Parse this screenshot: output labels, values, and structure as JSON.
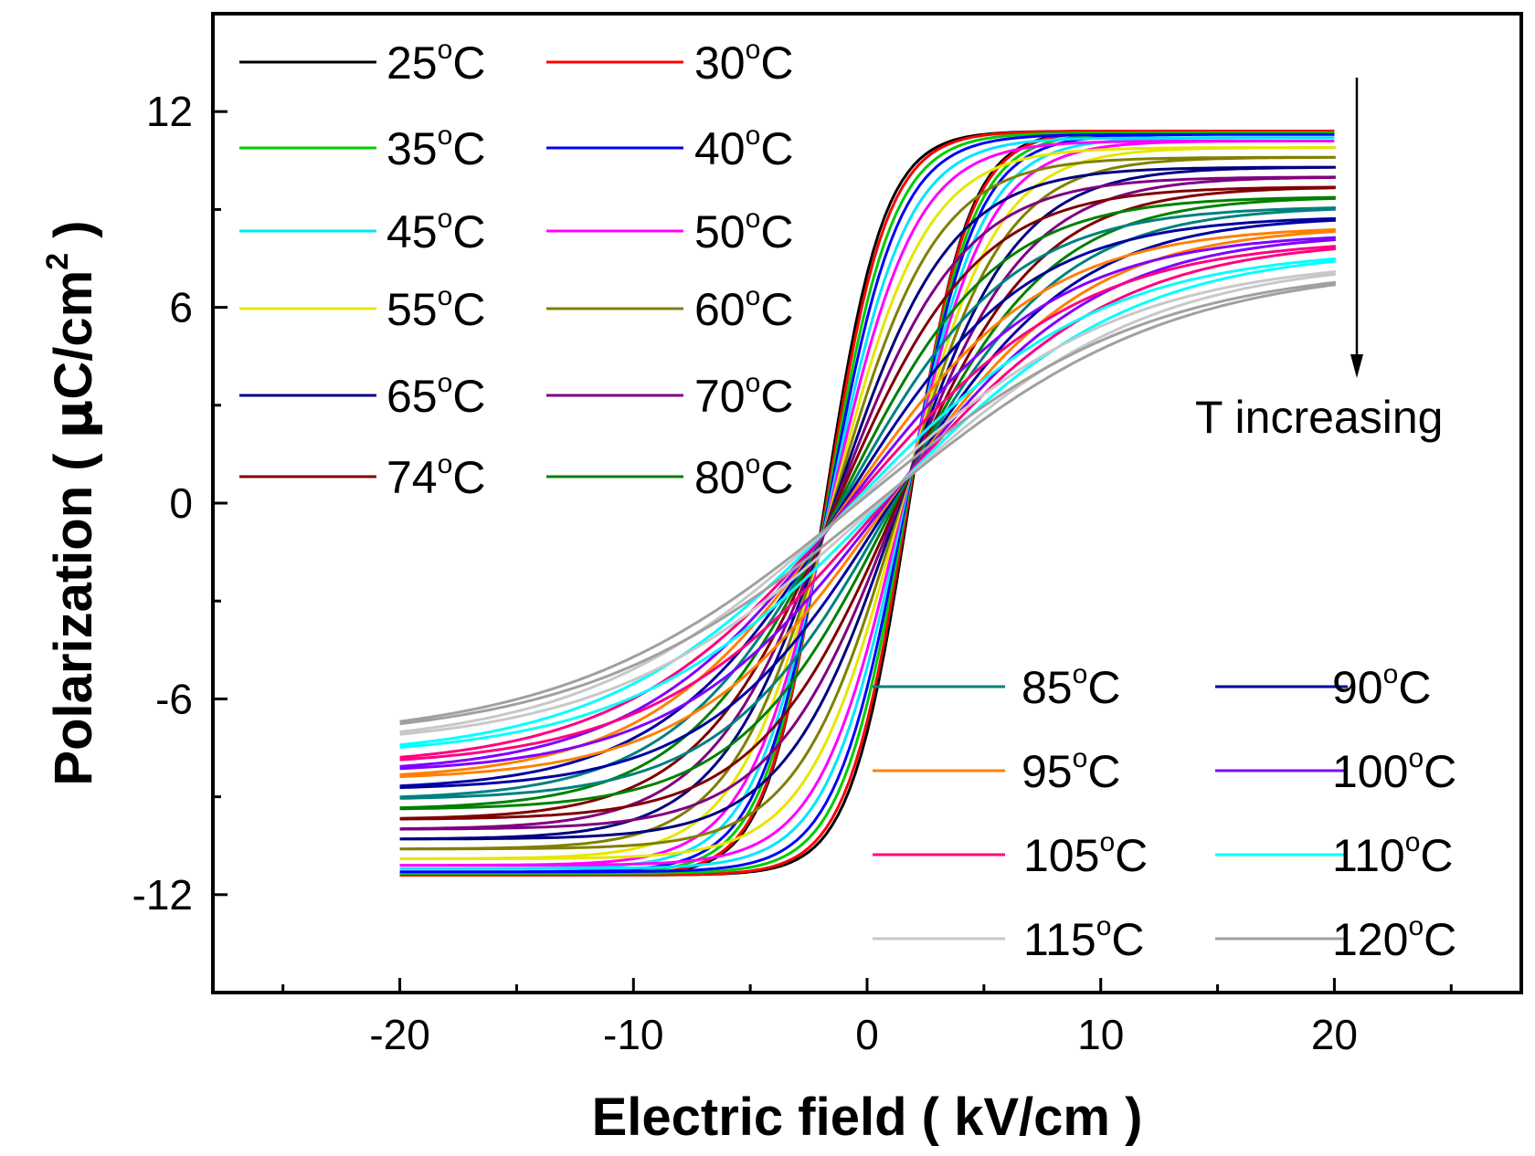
{
  "chart_data": {
    "type": "line",
    "title": "",
    "xlabel": "Electric field ( kV/cm )",
    "ylabel_parts": [
      "Polarization ( ",
      "μ",
      "C/cm",
      "2",
      " )"
    ],
    "xlim": [
      -28,
      28
    ],
    "ylim": [
      -15,
      15
    ],
    "xticks": [
      -20,
      -10,
      0,
      10,
      20
    ],
    "xtick_labels": [
      "-20",
      "-10",
      "0",
      "10",
      "20"
    ],
    "yticks": [
      -12,
      -6,
      0,
      6,
      12
    ],
    "ytick_labels": [
      "-12",
      "-6",
      "0",
      "6",
      "12"
    ],
    "grid": false,
    "annotation": {
      "text": "T increasing",
      "arrow": "down"
    },
    "x_range": [
      -20,
      20
    ],
    "series": [
      {
        "name": "25",
        "label_tail": "C",
        "color": "#000000",
        "ps": 11.4,
        "ec": 1.8,
        "e0": 2.5
      },
      {
        "name": "30",
        "label_tail": "C",
        "color": "#ff0000",
        "ps": 11.4,
        "ec": 1.75,
        "e0": 2.6
      },
      {
        "name": "35",
        "label_tail": "C",
        "color": "#00cc00",
        "ps": 11.35,
        "ec": 1.7,
        "e0": 2.8
      },
      {
        "name": "40",
        "label_tail": "C",
        "color": "#0000ff",
        "ps": 11.3,
        "ec": 1.65,
        "e0": 3.0
      },
      {
        "name": "45",
        "label_tail": "C",
        "color": "#00e5ff",
        "ps": 11.2,
        "ec": 1.6,
        "e0": 3.3
      },
      {
        "name": "50",
        "label_tail": "C",
        "color": "#ff00ff",
        "ps": 11.1,
        "ec": 1.55,
        "e0": 3.6
      },
      {
        "name": "55",
        "label_tail": "C",
        "color": "#e6e600",
        "ps": 10.9,
        "ec": 1.5,
        "e0": 4.0
      },
      {
        "name": "60",
        "label_tail": "C",
        "color": "#808000",
        "ps": 10.6,
        "ec": 1.45,
        "e0": 4.4
      },
      {
        "name": "65",
        "label_tail": "C",
        "color": "#000080",
        "ps": 10.3,
        "ec": 1.4,
        "e0": 4.9
      },
      {
        "name": "70",
        "label_tail": "C",
        "color": "#800080",
        "ps": 10.0,
        "ec": 1.35,
        "e0": 5.4
      },
      {
        "name": "74",
        "label_tail": "C",
        "color": "#800000",
        "ps": 9.7,
        "ec": 1.3,
        "e0": 6.0
      },
      {
        "name": "80",
        "label_tail": "C",
        "color": "#008000",
        "ps": 9.4,
        "ec": 1.2,
        "e0": 6.6
      },
      {
        "name": "85",
        "label_tail": "C",
        "color": "#008080",
        "ps": 9.1,
        "ec": 1.1,
        "e0": 7.2
      },
      {
        "name": "90",
        "label_tail": "C",
        "color": "#0000a0",
        "ps": 8.8,
        "ec": 1.0,
        "e0": 7.8
      },
      {
        "name": "95",
        "label_tail": "C",
        "color": "#ff8000",
        "ps": 8.5,
        "ec": 0.9,
        "e0": 8.4
      },
      {
        "name": "100",
        "label_tail": "C",
        "color": "#8000ff",
        "ps": 8.3,
        "ec": 0.8,
        "e0": 9.0
      },
      {
        "name": "105",
        "label_tail": "C",
        "color": "#ff0080",
        "ps": 8.1,
        "ec": 0.7,
        "e0": 9.8
      },
      {
        "name": "110",
        "label_tail": "C",
        "color": "#00ffff",
        "ps": 7.8,
        "ec": 0.6,
        "e0": 10.6
      },
      {
        "name": "115",
        "label_tail": "C",
        "color": "#c8c8c8",
        "ps": 7.5,
        "ec": 0.5,
        "e0": 11.5
      },
      {
        "name": "120",
        "label_tail": "C",
        "color": "#a0a0a0",
        "ps": 7.3,
        "ec": 0.4,
        "e0": 12.5
      }
    ]
  }
}
